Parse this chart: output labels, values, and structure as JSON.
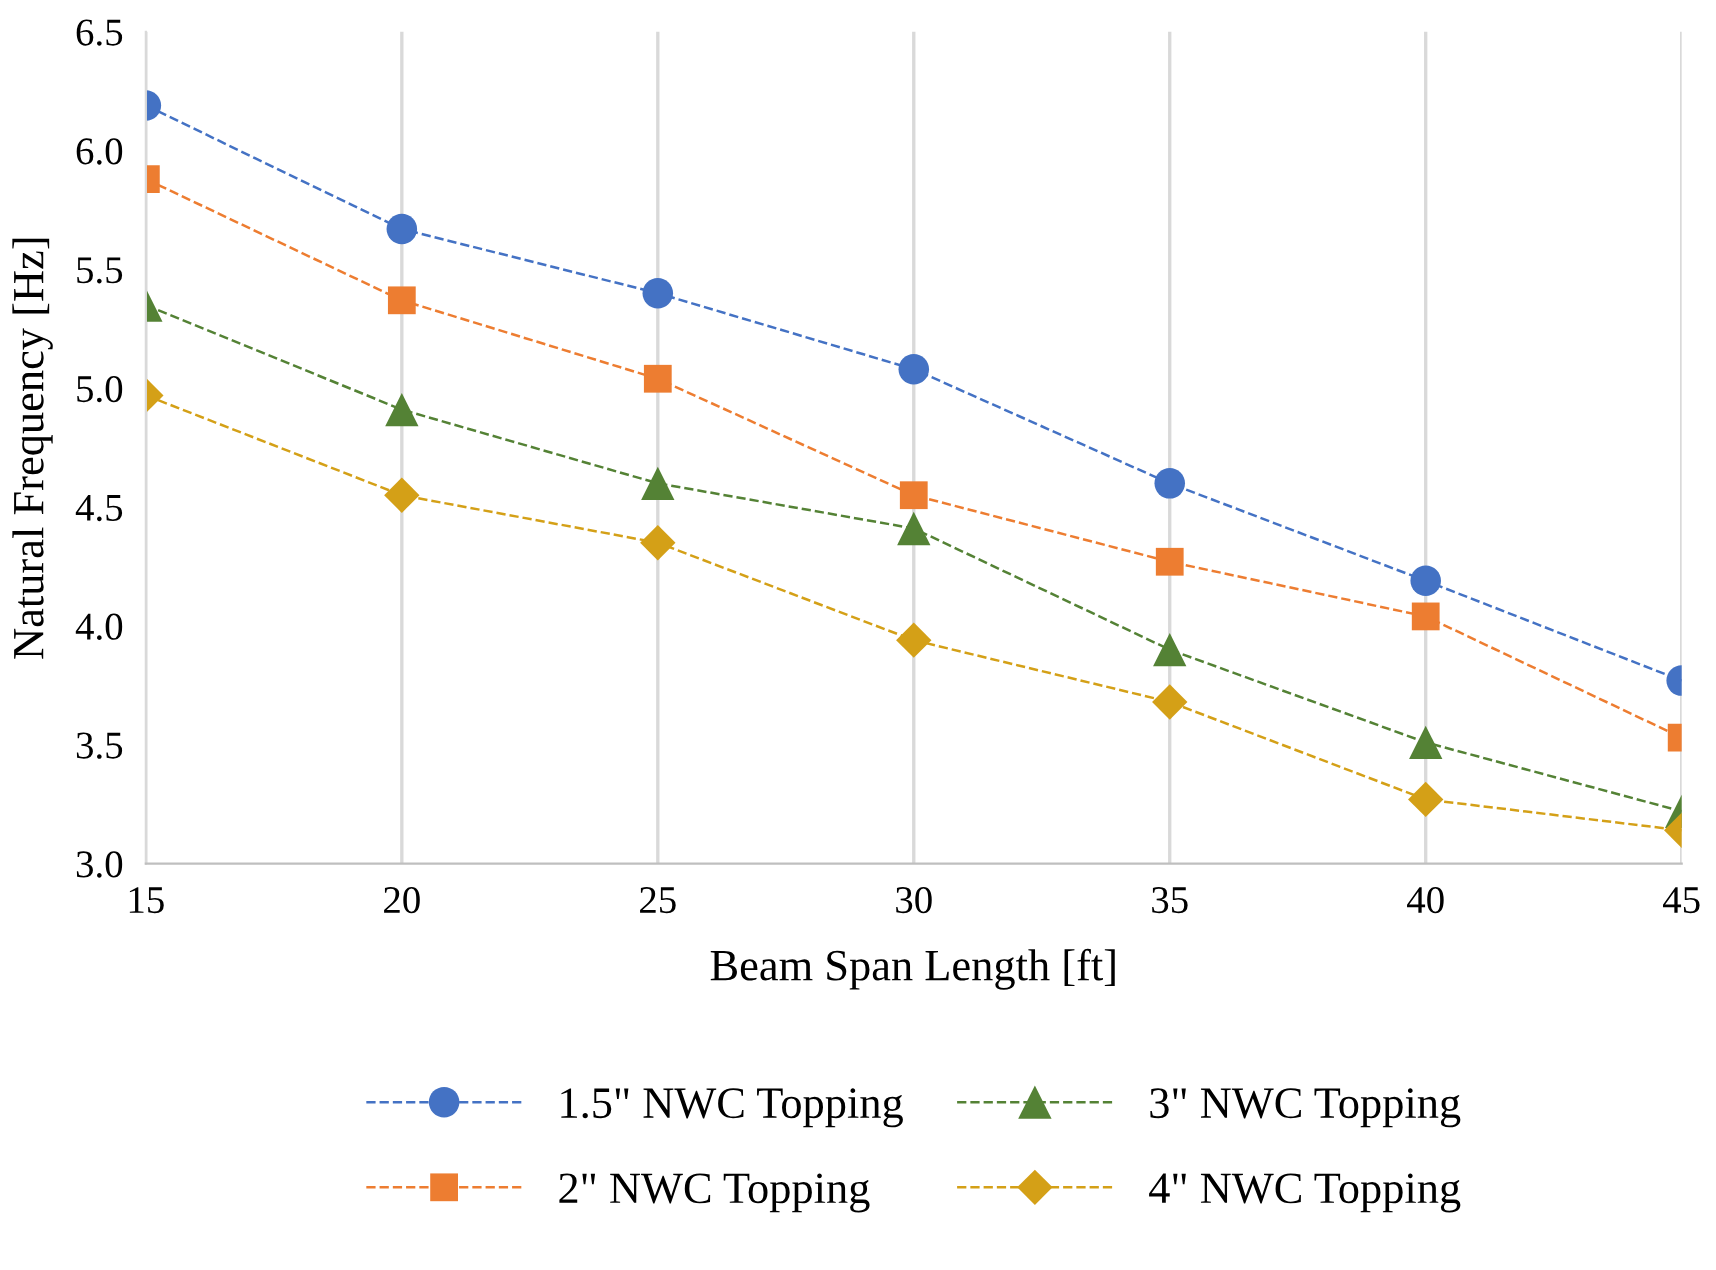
{
  "chart_data": {
    "type": "line",
    "xlabel": "Beam Span Length [ft]",
    "ylabel": "Natural Frequency [Hz]",
    "x": [
      15,
      20,
      25,
      30,
      35,
      40,
      45
    ],
    "series": [
      {
        "name": "1.5\" NWC Topping",
        "color": "#4472c4",
        "marker": "circle",
        "values": [
          6.19,
          5.67,
          5.4,
          5.08,
          4.6,
          4.19,
          3.77
        ]
      },
      {
        "name": "2\" NWC Topping",
        "color": "#ed7d31",
        "marker": "square",
        "values": [
          5.88,
          5.37,
          5.04,
          4.55,
          4.27,
          4.04,
          3.53
        ]
      },
      {
        "name": "3\" NWC Topping",
        "color": "#548235",
        "marker": "triangle",
        "values": [
          5.35,
          4.91,
          4.6,
          4.41,
          3.9,
          3.51,
          3.22
        ]
      },
      {
        "name": "4\" NWC Topping",
        "color": "#d4a017",
        "marker": "diamond",
        "values": [
          4.97,
          4.55,
          4.35,
          3.94,
          3.68,
          3.27,
          3.14
        ]
      }
    ],
    "xlim": [
      15,
      45
    ],
    "xticks": [
      15,
      20,
      25,
      30,
      35,
      40,
      45
    ],
    "ylim": [
      3.0,
      6.5
    ],
    "yticks": [
      {
        "value": 3.0,
        "label": "3.0"
      },
      {
        "value": 3.5,
        "label": "3.5"
      },
      {
        "value": 4.0,
        "label": "4.0"
      },
      {
        "value": 4.5,
        "label": "4.5"
      },
      {
        "value": 5.0,
        "label": "5.0"
      },
      {
        "value": 5.5,
        "label": "5.5"
      },
      {
        "value": 6.0,
        "label": "6.0"
      },
      {
        "value": 6.5,
        "label": "6.5"
      }
    ],
    "grid": "x",
    "legend": "bottom",
    "line_style": "dashed"
  }
}
